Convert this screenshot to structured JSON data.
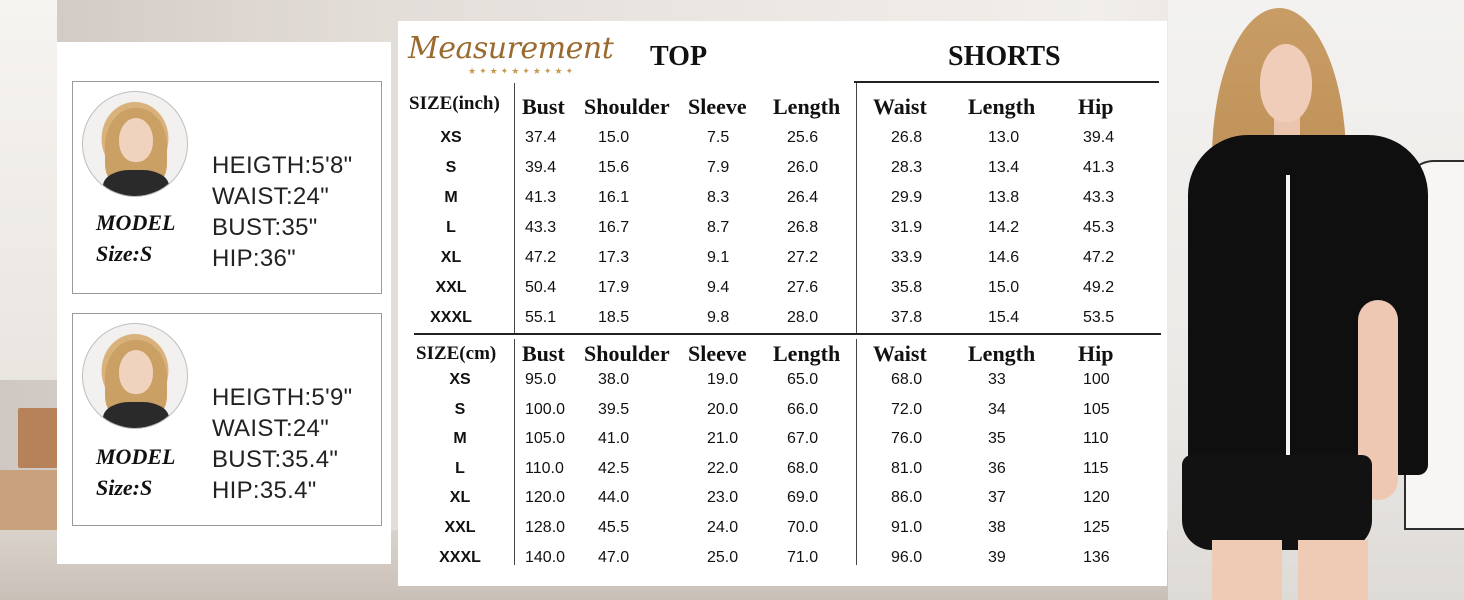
{
  "models": [
    {
      "label_line1": "MODEL",
      "label_line2": "Size:S",
      "height": "HEIGTH:5'8\"",
      "waist": "WAIST:24\"",
      "bust": "BUST:35\"",
      "hip": "HIP:36\""
    },
    {
      "label_line1": "MODEL",
      "label_line2": "Size:S",
      "height": "HEIGTH:5'9\"",
      "waist": "WAIST:24\"",
      "bust": "BUST:35.4\"",
      "hip": "HIP:35.4\""
    }
  ],
  "chart": {
    "brand": "Measurement",
    "top_title": "TOP",
    "shorts_title": "SHORTS",
    "inch": {
      "size_label": "SIZE(inch)",
      "headers": [
        "Bust",
        "Shoulder",
        "Sleeve",
        "Length",
        "Waist",
        "Length",
        "Hip"
      ],
      "rows": [
        [
          "XS",
          "37.4",
          "15.0",
          "7.5",
          "25.6",
          "26.8",
          "13.0",
          "39.4"
        ],
        [
          "S",
          "39.4",
          "15.6",
          "7.9",
          "26.0",
          "28.3",
          "13.4",
          "41.3"
        ],
        [
          "M",
          "41.3",
          "16.1",
          "8.3",
          "26.4",
          "29.9",
          "13.8",
          "43.3"
        ],
        [
          "L",
          "43.3",
          "16.7",
          "8.7",
          "26.8",
          "31.9",
          "14.2",
          "45.3"
        ],
        [
          "XL",
          "47.2",
          "17.3",
          "9.1",
          "27.2",
          "33.9",
          "14.6",
          "47.2"
        ],
        [
          "XXL",
          "50.4",
          "17.9",
          "9.4",
          "27.6",
          "35.8",
          "15.0",
          "49.2"
        ],
        [
          "XXXL",
          "55.1",
          "18.5",
          "9.8",
          "28.0",
          "37.8",
          "15.4",
          "53.5"
        ]
      ]
    },
    "cm": {
      "size_label": "SIZE(cm)",
      "headers": [
        "Bust",
        "Shoulder",
        "Sleeve",
        "Length",
        "Waist",
        "Length",
        "Hip"
      ],
      "rows": [
        [
          "XS",
          "95.0",
          "38.0",
          "19.0",
          "65.0",
          "68.0",
          "33",
          "100"
        ],
        [
          "S",
          "100.0",
          "39.5",
          "20.0",
          "66.0",
          "72.0",
          "34",
          "105"
        ],
        [
          "M",
          "105.0",
          "41.0",
          "21.0",
          "67.0",
          "76.0",
          "35",
          "110"
        ],
        [
          "L",
          "110.0",
          "42.5",
          "22.0",
          "68.0",
          "81.0",
          "36",
          "115"
        ],
        [
          "XL",
          "120.0",
          "44.0",
          "23.0",
          "69.0",
          "86.0",
          "37",
          "120"
        ],
        [
          "XXL",
          "128.0",
          "45.5",
          "24.0",
          "70.0",
          "91.0",
          "38",
          "125"
        ],
        [
          "XXXL",
          "140.0",
          "47.0",
          "25.0",
          "71.0",
          "96.0",
          "39",
          "136"
        ]
      ]
    }
  }
}
